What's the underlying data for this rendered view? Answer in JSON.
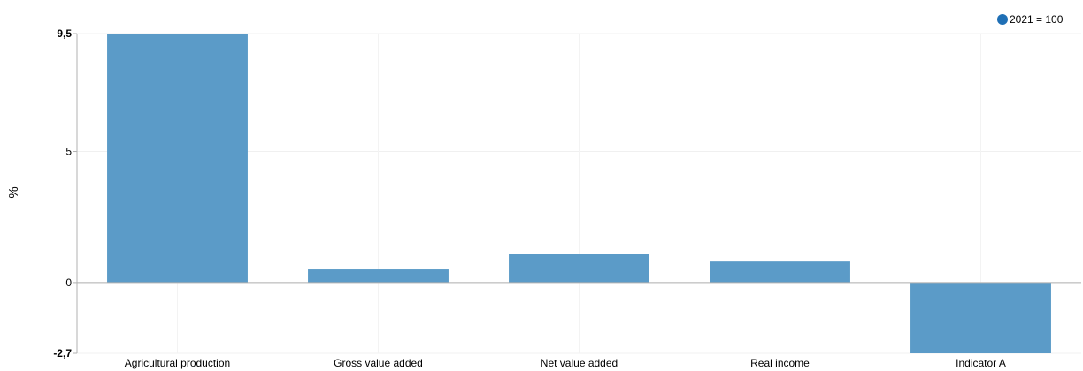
{
  "chart_data": {
    "type": "bar",
    "categories": [
      "Agricultural production",
      "Gross value added",
      "Net value added",
      "Real income",
      "Indicator A"
    ],
    "series": [
      {
        "name": "2021 = 100",
        "values": [
          9.5,
          0.5,
          1.1,
          0.8,
          -2.7
        ]
      }
    ],
    "xlabel": "",
    "ylabel": "%",
    "ylim": [
      -2.7,
      9.5
    ],
    "yticks": [
      {
        "value": -2.7,
        "label": "-2,7",
        "bold": true
      },
      {
        "value": 0,
        "label": "0",
        "bold": false
      },
      {
        "value": 5,
        "label": "5",
        "bold": false
      },
      {
        "value": 9.5,
        "label": "9,5",
        "bold": true
      }
    ],
    "grid": true,
    "legend_position": "top-right",
    "bar_color": "#5b9bc8",
    "legend_marker_color": "#1f6fb5"
  }
}
